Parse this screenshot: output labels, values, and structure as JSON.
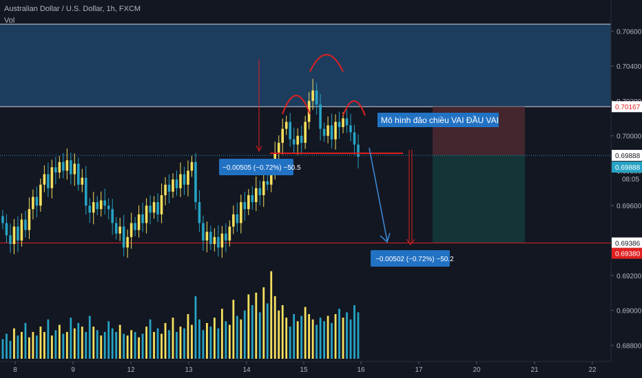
{
  "header": {
    "title": "Australian Dollar / U.S. Dollar, 1h, FXCM",
    "sub": "Vol"
  },
  "colors": {
    "background": "#131722",
    "bull": "#f6e05e",
    "bear": "#26a3c4",
    "resistance_zone": "#1d3d5e",
    "level_line": "#d1d4dc",
    "red": "#e02020",
    "arrow": "#3d8fe0",
    "label_bg": "#2272c4",
    "stop_zone": "#4a2830",
    "target_zone": "#14383b"
  },
  "annotations": {
    "pattern_label": "Mô hình đảo chiều VAI ĐẦU VAI",
    "measure_left": "−0.00505 (−0.72%) −50.5",
    "measure_right": "−0.00502 (−0.72%) −50.2",
    "countdown": "08:05"
  },
  "price_labels": {
    "top_line": "0.70167",
    "current": "0.69888",
    "current_2": "0.69888",
    "target_line": "0.69386",
    "target_red": "0.69380"
  },
  "chart_data": {
    "type": "candlestick",
    "title": "Australian Dollar / U.S. Dollar, 1h, FXCM",
    "y_axis": {
      "ticks": [
        "0.70600",
        "0.70400",
        "0.70200",
        "0.70000",
        "0.69800",
        "0.69600",
        "0.69400",
        "0.69200",
        "0.69000",
        "0.68800"
      ],
      "range": [
        0.6875,
        0.7068
      ]
    },
    "x_axis": {
      "ticks": [
        "8",
        "9",
        "12",
        "13",
        "14",
        "15",
        "16",
        "17",
        "20",
        "21",
        "22"
      ]
    },
    "levels": {
      "resistance_zone_top": 0.7064,
      "resistance_line": 0.70167,
      "current_price": 0.69888,
      "target_line": 0.69386
    },
    "closes": [
      0.695,
      0.6943,
      0.6938,
      0.6948,
      0.694,
      0.6952,
      0.6946,
      0.6958,
      0.6965,
      0.696,
      0.6972,
      0.6978,
      0.697,
      0.6982,
      0.6979,
      0.6985,
      0.698,
      0.6986,
      0.6978,
      0.6984,
      0.6972,
      0.6976,
      0.696,
      0.6956,
      0.6962,
      0.6958,
      0.6963,
      0.696,
      0.6958,
      0.695,
      0.6944,
      0.6948,
      0.6936,
      0.6942,
      0.695,
      0.6946,
      0.6955,
      0.695,
      0.696,
      0.6956,
      0.6962,
      0.6955,
      0.6966,
      0.6972,
      0.6968,
      0.6975,
      0.697,
      0.6978,
      0.6972,
      0.698,
      0.6985,
      0.6962,
      0.695,
      0.694,
      0.6945,
      0.6938,
      0.6942,
      0.6936,
      0.6944,
      0.694,
      0.6948,
      0.6955,
      0.695,
      0.6962,
      0.6958,
      0.6966,
      0.6962,
      0.697,
      0.6966,
      0.6974,
      0.6972,
      0.698,
      0.699,
      0.6996,
      0.7004,
      0.7008,
      0.6998,
      0.6995,
      0.7,
      0.6996,
      0.7008,
      0.702,
      0.7026,
      0.7018,
      0.7004,
      0.7,
      0.7006,
      0.6998,
      0.7008,
      0.7005,
      0.701,
      0.7006,
      0.7002,
      0.6995,
      0.6988
    ],
    "volumes": [
      22,
      28,
      20,
      34,
      26,
      30,
      40,
      24,
      30,
      26,
      36,
      30,
      44,
      26,
      32,
      38,
      28,
      30,
      46,
      34,
      40,
      36,
      30,
      48,
      36,
      32,
      26,
      30,
      42,
      34,
      30,
      38,
      28,
      26,
      32,
      30,
      24,
      28,
      36,
      44,
      30,
      34,
      28,
      40,
      32,
      46,
      30,
      36,
      34,
      50,
      38,
      70,
      44,
      32,
      40,
      36,
      46,
      34,
      56,
      42,
      38,
      66,
      48,
      44,
      54,
      72,
      60,
      74,
      52,
      80,
      62,
      98,
      70,
      54,
      60,
      46,
      36,
      50,
      42,
      48,
      58,
      50,
      44,
      38,
      46,
      42,
      48,
      40,
      50,
      56,
      46,
      52,
      44,
      60,
      52
    ]
  }
}
